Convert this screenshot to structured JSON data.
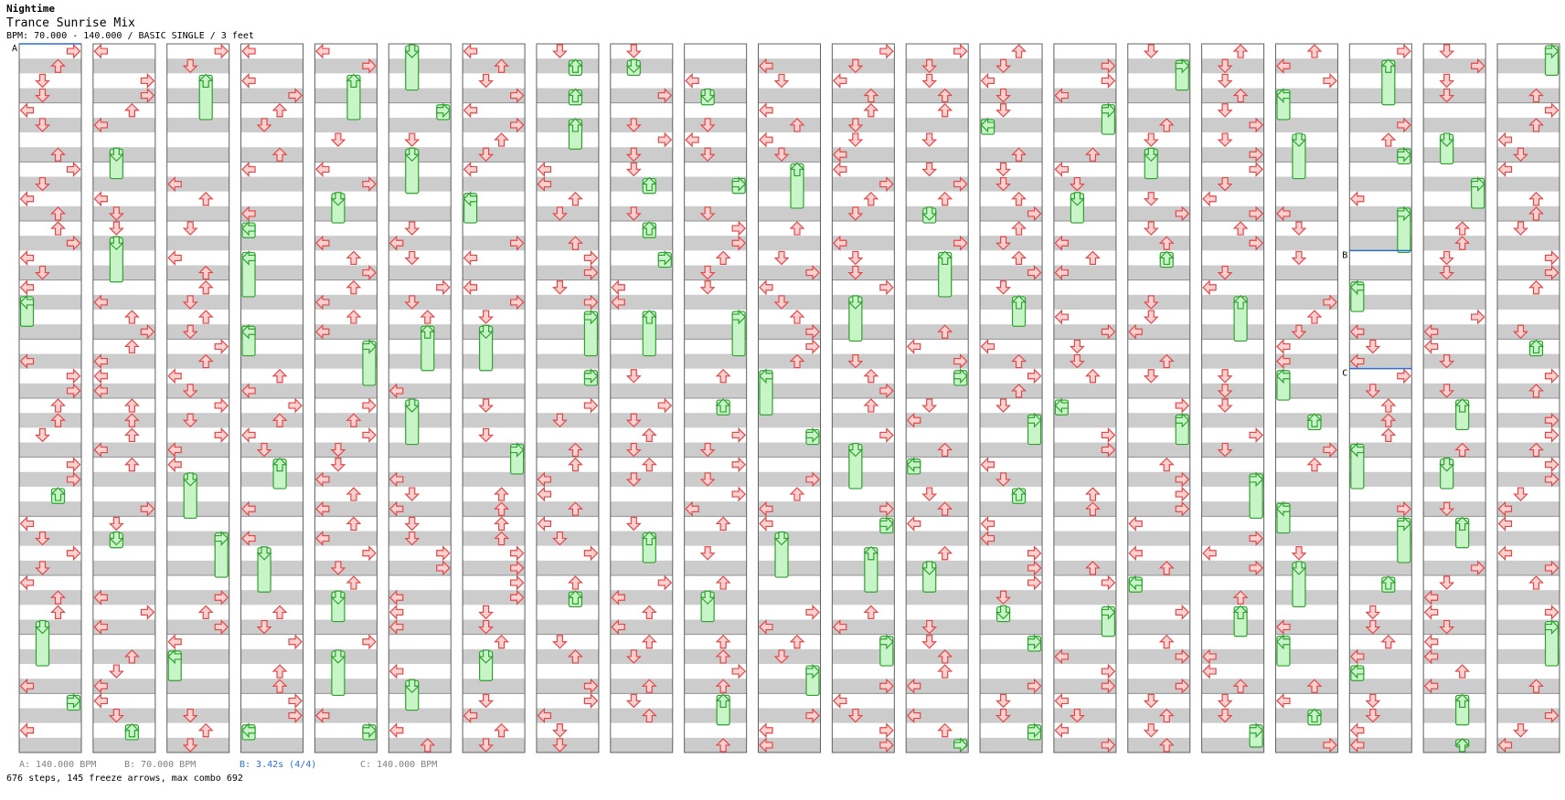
{
  "song": {
    "title": "Nightime",
    "mix": "Trance Sunrise Mix",
    "info": "BPM: 70.000 - 140.000 / BASIC SINGLE / 3 feet"
  },
  "markers": [
    "A",
    "B",
    "C"
  ],
  "legend": {
    "a": "A: 140.000 BPM",
    "b": "B: 70.000 BPM",
    "b_stop": "B: 3.42s (4/4)",
    "c": "C: 140.000 BPM"
  },
  "stats": "676 steps, 145 freeze arrows, max combo 692",
  "colors": {
    "arrow_fill": "#ffd0d0",
    "arrow_stroke": "#e04848",
    "freeze_fill": "#c8f5c8",
    "freeze_stroke": "#30a030",
    "band": "#cccccc",
    "marker_line": "#2a6fd6"
  },
  "chart_data": {
    "type": "step-chart",
    "columns": 21,
    "measures_per_column": 12,
    "lanes": [
      "left",
      "down",
      "up",
      "right"
    ],
    "markers": [
      {
        "label": "A",
        "column": 0,
        "measure": 0
      },
      {
        "label": "B",
        "column": 18,
        "measure": 3.5
      },
      {
        "label": "C",
        "column": 18,
        "measure": 5.5
      }
    ]
  }
}
